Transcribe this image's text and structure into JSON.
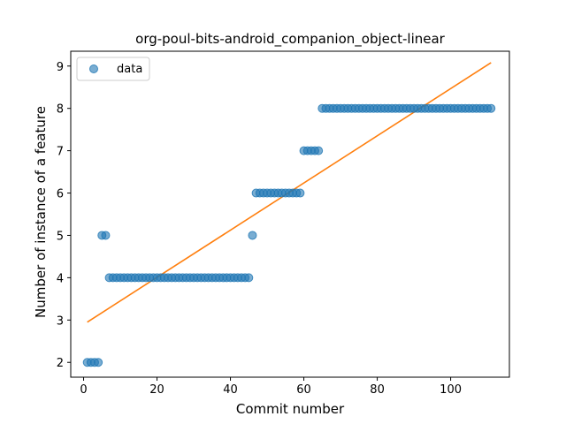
{
  "chart_data": {
    "type": "scatter",
    "title": "org-poul-bits-android_companion_object-linear",
    "xlabel": "Commit number",
    "ylabel": "Number of instance of a feature",
    "xlim": [
      -3.5,
      116
    ],
    "ylim": [
      1.65,
      9.35
    ],
    "xticks": [
      0,
      20,
      40,
      60,
      80,
      100
    ],
    "yticks": [
      2,
      3,
      4,
      5,
      6,
      7,
      8,
      9
    ],
    "grid": false,
    "legend": {
      "position": "top-left",
      "entries": [
        "data"
      ]
    },
    "colors": {
      "data": "#1f77b4",
      "fit": "#ff7f0e"
    },
    "series": [
      {
        "name": "data",
        "kind": "scatter",
        "x": [
          1,
          2,
          3,
          4,
          5,
          6,
          7,
          8,
          9,
          10,
          11,
          12,
          13,
          14,
          15,
          16,
          17,
          18,
          19,
          20,
          21,
          22,
          23,
          24,
          25,
          26,
          27,
          28,
          29,
          30,
          31,
          32,
          33,
          34,
          35,
          36,
          37,
          38,
          39,
          40,
          41,
          42,
          43,
          44,
          45,
          46,
          47,
          48,
          49,
          50,
          51,
          52,
          53,
          54,
          55,
          56,
          57,
          58,
          59,
          60,
          61,
          62,
          63,
          64,
          65,
          66,
          67,
          68,
          69,
          70,
          71,
          72,
          73,
          74,
          75,
          76,
          77,
          78,
          79,
          80,
          81,
          82,
          83,
          84,
          85,
          86,
          87,
          88,
          89,
          90,
          91,
          92,
          93,
          94,
          95,
          96,
          97,
          98,
          99,
          100,
          101,
          102,
          103,
          104,
          105,
          106,
          107,
          108,
          109,
          110,
          111
        ],
        "y": [
          2,
          2,
          2,
          2,
          5,
          5,
          4,
          4,
          4,
          4,
          4,
          4,
          4,
          4,
          4,
          4,
          4,
          4,
          4,
          4,
          4,
          4,
          4,
          4,
          4,
          4,
          4,
          4,
          4,
          4,
          4,
          4,
          4,
          4,
          4,
          4,
          4,
          4,
          4,
          4,
          4,
          4,
          4,
          4,
          4,
          5,
          6,
          6,
          6,
          6,
          6,
          6,
          6,
          6,
          6,
          6,
          6,
          6,
          6,
          7,
          7,
          7,
          7,
          7,
          8,
          8,
          8,
          8,
          8,
          8,
          8,
          8,
          8,
          8,
          8,
          8,
          8,
          8,
          8,
          8,
          8,
          8,
          8,
          8,
          8,
          8,
          8,
          8,
          8,
          8,
          8,
          8,
          8,
          8,
          8,
          8,
          8,
          8,
          8,
          8,
          8,
          8,
          8,
          8,
          8,
          8,
          8,
          8,
          8,
          8,
          8
        ]
      },
      {
        "kind": "line",
        "x": [
          1,
          111
        ],
        "y": [
          2.95,
          9.08
        ]
      }
    ]
  }
}
